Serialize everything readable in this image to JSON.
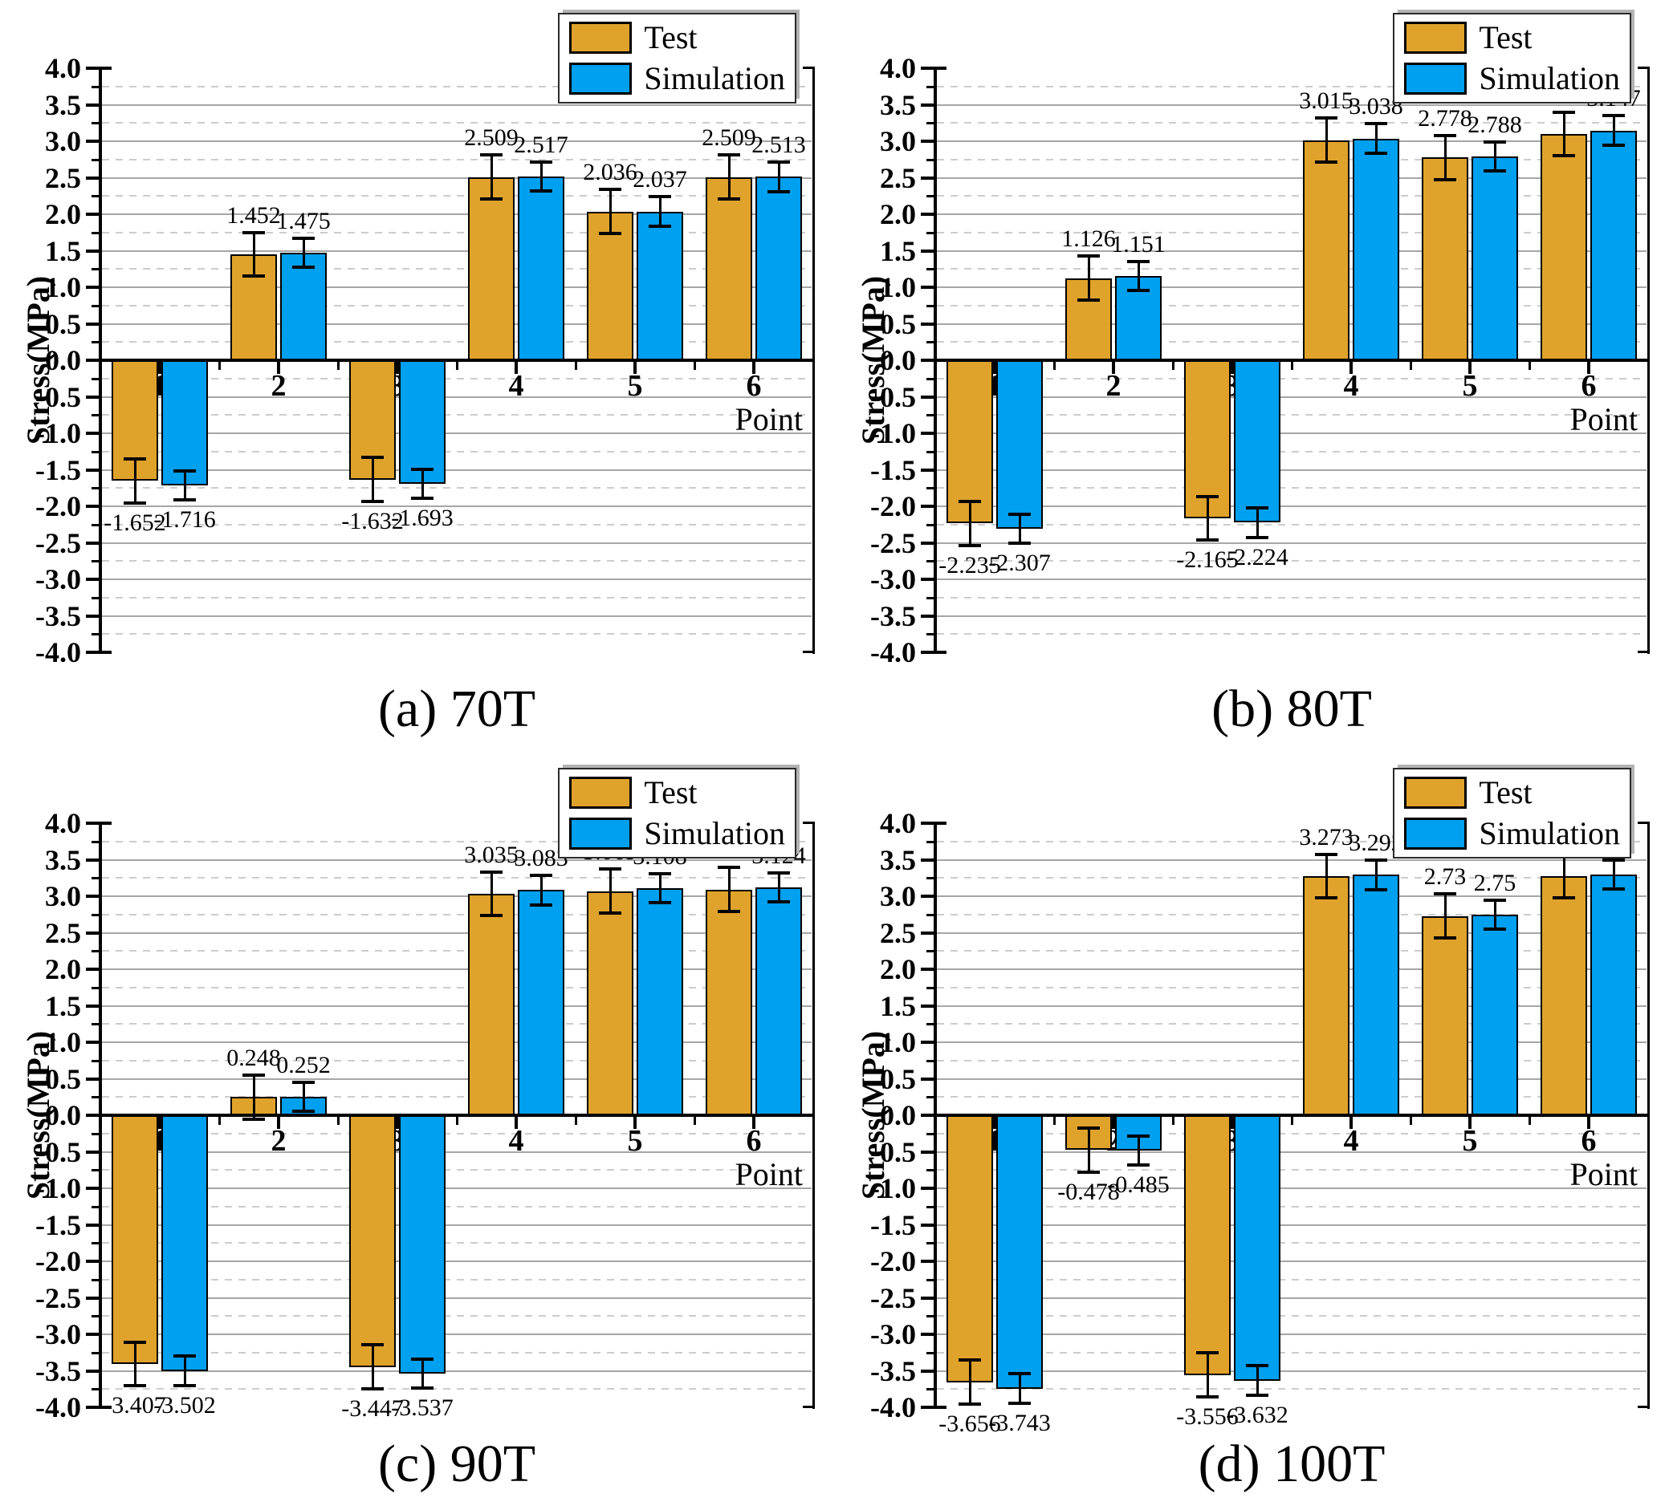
{
  "figure": {
    "background": "#ffffff",
    "colors": {
      "test": "#DFA32B",
      "simulation": "#00A0F0",
      "axis": "#000000",
      "grid_major": "#a6a6a6",
      "grid_minor": "#cccccc"
    },
    "legend": {
      "position": "top-right",
      "items": [
        {
          "label": "Test",
          "color_key": "test"
        },
        {
          "label": "Simulation",
          "color_key": "simulation"
        }
      ]
    }
  },
  "chart_data": [
    {
      "type": "bar",
      "caption": "(a) 70T",
      "xlabel": "Point",
      "ylabel": "Stress(MPa)",
      "ylim": [
        -4.0,
        4.0
      ],
      "ytick_step": 0.5,
      "yminor_step": 0.25,
      "grid": "major-solid-minor-dashed",
      "categories": [
        "1",
        "2",
        "3",
        "4",
        "5",
        "6"
      ],
      "series": [
        {
          "name": "Test",
          "color_key": "test",
          "error": 0.3,
          "values": [
            -1.652,
            1.452,
            -1.632,
            2.509,
            2.036,
            2.509
          ],
          "labels": [
            "-1.652",
            "1.452",
            "-1.632",
            "2.509",
            "2.036",
            "2.509"
          ]
        },
        {
          "name": "Simulation",
          "color_key": "simulation",
          "error": 0.2,
          "values": [
            -1.716,
            1.475,
            -1.693,
            2.517,
            2.037,
            2.513
          ],
          "labels": [
            "-1.716",
            "1.475",
            "-1.693",
            "2.517",
            "2.037",
            "2.513"
          ]
        }
      ]
    },
    {
      "type": "bar",
      "caption": "(b) 80T",
      "xlabel": "Point",
      "ylabel": "Stress(MPa)",
      "ylim": [
        -4.0,
        4.0
      ],
      "ytick_step": 0.5,
      "yminor_step": 0.25,
      "grid": "major-solid-minor-dashed",
      "categories": [
        "1",
        "2",
        "3",
        "4",
        "5",
        "6"
      ],
      "series": [
        {
          "name": "Test",
          "color_key": "test",
          "error": 0.3,
          "values": [
            -2.235,
            1.126,
            -2.165,
            3.015,
            2.778,
            3.0975
          ],
          "labels": [
            "-2.235",
            "1.126",
            "-2.165",
            "3.015",
            "2.778",
            "3.0975"
          ]
        },
        {
          "name": "Simulation",
          "color_key": "simulation",
          "error": 0.2,
          "values": [
            -2.307,
            1.151,
            -2.224,
            3.038,
            2.788,
            3.147
          ],
          "labels": [
            "-2.307",
            "1.151",
            "-2.224",
            "3.038",
            "2.788",
            "3.147"
          ]
        }
      ]
    },
    {
      "type": "bar",
      "caption": "(c) 90T",
      "xlabel": "Point",
      "ylabel": "Stress(MPa)",
      "ylim": [
        -4.0,
        4.0
      ],
      "ytick_step": 0.5,
      "yminor_step": 0.25,
      "grid": "major-solid-minor-dashed",
      "categories": [
        "1",
        "2",
        "3",
        "4",
        "5",
        "6"
      ],
      "series": [
        {
          "name": "Test",
          "color_key": "test",
          "error": 0.3,
          "values": [
            -3.407,
            0.248,
            -3.447,
            3.035,
            3.069,
            3.093
          ],
          "labels": [
            "-3.407",
            "0.248",
            "-3.447",
            "3.035",
            "3.069",
            "3.093"
          ]
        },
        {
          "name": "Simulation",
          "color_key": "simulation",
          "error": 0.2,
          "values": [
            -3.502,
            0.252,
            -3.537,
            3.083,
            3.108,
            3.124
          ],
          "labels": [
            "-3.502",
            "0.252",
            "-3.537",
            "3.083",
            "3.108",
            "3.124"
          ]
        }
      ]
    },
    {
      "type": "bar",
      "caption": "(d) 100T",
      "xlabel": "Point",
      "ylabel": "Stress(MPa)",
      "ylim": [
        -4.0,
        4.0
      ],
      "ytick_step": 0.5,
      "yminor_step": 0.25,
      "grid": "major-solid-minor-dashed",
      "categories": [
        "1",
        "2",
        "3",
        "4",
        "5",
        "6"
      ],
      "series": [
        {
          "name": "Test",
          "color_key": "test",
          "error": 0.3,
          "values": [
            -3.656,
            -0.478,
            -3.556,
            3.273,
            2.73,
            3.273
          ],
          "labels": [
            "-3.656",
            "-0.478",
            "-3.556",
            "3.273",
            "2.73",
            "3.273"
          ]
        },
        {
          "name": "Simulation",
          "color_key": "simulation",
          "error": 0.2,
          "values": [
            -3.743,
            -0.485,
            -3.632,
            3.292,
            2.75,
            3.3
          ],
          "labels": [
            "-3.743",
            "-0.485",
            "-3.632",
            "3.292",
            "2.75",
            "3.3"
          ]
        }
      ]
    }
  ]
}
